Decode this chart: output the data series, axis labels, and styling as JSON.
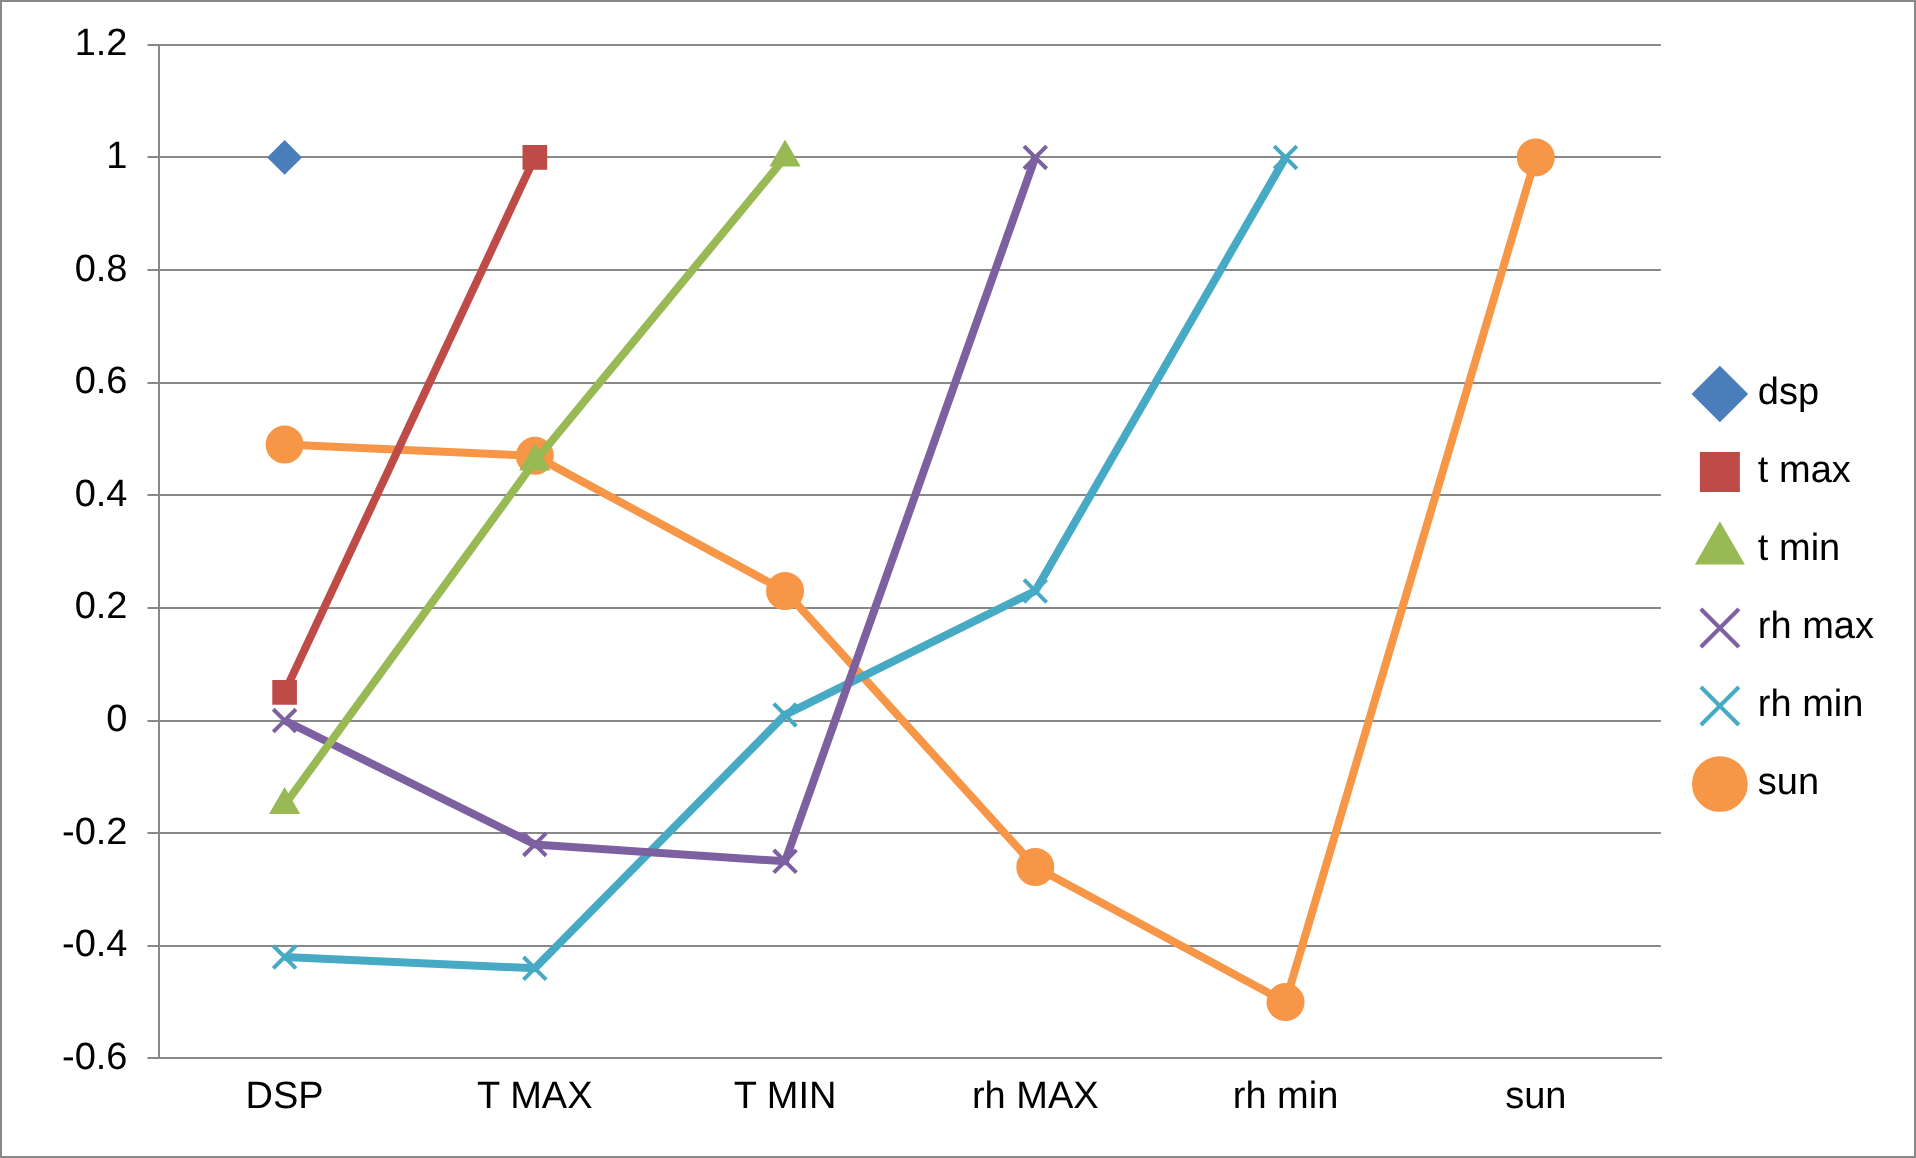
{
  "chart_data": {
    "type": "line",
    "categories": [
      "DSP",
      "T MAX",
      "T MIN",
      "rh MAX",
      "rh min",
      "sun"
    ],
    "series": [
      {
        "name": "dsp",
        "color": "#4a7ebb",
        "marker": "diamond",
        "values": [
          1,
          null,
          null,
          null,
          null,
          null
        ]
      },
      {
        "name": "t max",
        "color": "#be4b48",
        "marker": "square",
        "values": [
          0.05,
          1,
          null,
          null,
          null,
          null
        ]
      },
      {
        "name": "t min",
        "color": "#98b954",
        "marker": "triangle",
        "values": [
          -0.15,
          0.46,
          1,
          null,
          null,
          null
        ]
      },
      {
        "name": "rh max",
        "color": "#7d60a0",
        "marker": "cross",
        "values": [
          0,
          -0.22,
          -0.25,
          1,
          null,
          null
        ]
      },
      {
        "name": "rh min",
        "color": "#46aac5",
        "marker": "cross",
        "values": [
          -0.42,
          -0.44,
          0.01,
          0.23,
          1,
          null
        ]
      },
      {
        "name": "sun",
        "color": "#f79646",
        "marker": "circle",
        "values": [
          0.49,
          0.47,
          0.23,
          -0.26,
          -0.5,
          1
        ]
      }
    ],
    "ylim": [
      -0.6,
      1.2
    ],
    "yticks": [
      -0.6,
      -0.4,
      -0.2,
      0,
      0.2,
      0.4,
      0.6,
      0.8,
      1,
      1.2
    ],
    "grid": "y",
    "legend": "right"
  }
}
